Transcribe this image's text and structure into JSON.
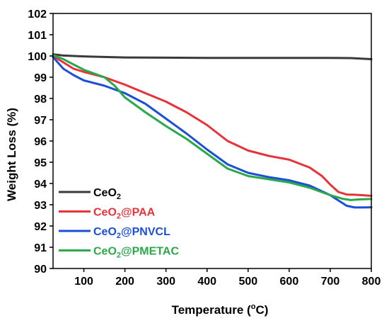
{
  "chart_data": {
    "type": "line",
    "xlabel": {
      "main": "Temperature (",
      "sup": "o",
      "tail": "C)"
    },
    "ylabel": "Weight Loss (%)",
    "xlim": [
      25,
      800
    ],
    "ylim": [
      90,
      102
    ],
    "xticks": [
      100,
      200,
      300,
      400,
      500,
      600,
      700,
      800
    ],
    "yticks": [
      90,
      91,
      92,
      93,
      94,
      95,
      96,
      97,
      98,
      99,
      100,
      101,
      102
    ],
    "grid": false,
    "legend_position": "bottom-left",
    "series": [
      {
        "name": "CeO2",
        "legend": {
          "base": "CeO",
          "sub": "2",
          "rest": ""
        },
        "color": "#3a3a3a",
        "x": [
          25,
          50,
          100,
          200,
          300,
          400,
          500,
          600,
          700,
          750,
          800
        ],
        "y": [
          100.08,
          100.02,
          99.98,
          99.93,
          99.92,
          99.91,
          99.91,
          99.91,
          99.91,
          99.9,
          99.85
        ]
      },
      {
        "name": "CeO2@PAA",
        "legend": {
          "base": "CeO",
          "sub": "2",
          "rest": "@PAA"
        },
        "color": "#e8323a",
        "x": [
          25,
          50,
          75,
          100,
          150,
          200,
          250,
          300,
          350,
          400,
          450,
          500,
          550,
          600,
          650,
          680,
          700,
          720,
          740,
          760,
          800
        ],
        "y": [
          100.0,
          99.7,
          99.4,
          99.25,
          99.0,
          98.65,
          98.25,
          97.85,
          97.35,
          96.75,
          96.0,
          95.55,
          95.3,
          95.12,
          94.75,
          94.35,
          93.95,
          93.6,
          93.48,
          93.47,
          93.42
        ]
      },
      {
        "name": "CeO2@PNVCL",
        "legend": {
          "base": "CeO",
          "sub": "2",
          "rest": "@PNVCL"
        },
        "color": "#1a4fd6",
        "x": [
          25,
          50,
          75,
          100,
          150,
          200,
          250,
          300,
          350,
          400,
          450,
          500,
          550,
          600,
          650,
          700,
          740,
          760,
          800
        ],
        "y": [
          99.95,
          99.4,
          99.1,
          98.85,
          98.6,
          98.25,
          97.75,
          97.05,
          96.35,
          95.6,
          94.9,
          94.5,
          94.3,
          94.15,
          93.9,
          93.45,
          92.95,
          92.87,
          92.88
        ]
      },
      {
        "name": "CeO2@PMETAC",
        "legend": {
          "base": "CeO",
          "sub": "2",
          "rest": "@PMETAC"
        },
        "color": "#2aa84a",
        "x": [
          25,
          50,
          100,
          150,
          175,
          200,
          250,
          300,
          350,
          400,
          450,
          500,
          550,
          600,
          650,
          700,
          730,
          750,
          770,
          800
        ],
        "y": [
          100.05,
          99.85,
          99.35,
          99.0,
          98.6,
          98.05,
          97.35,
          96.7,
          96.1,
          95.4,
          94.7,
          94.35,
          94.2,
          94.05,
          93.8,
          93.45,
          93.28,
          93.22,
          93.25,
          93.27
        ]
      }
    ]
  }
}
